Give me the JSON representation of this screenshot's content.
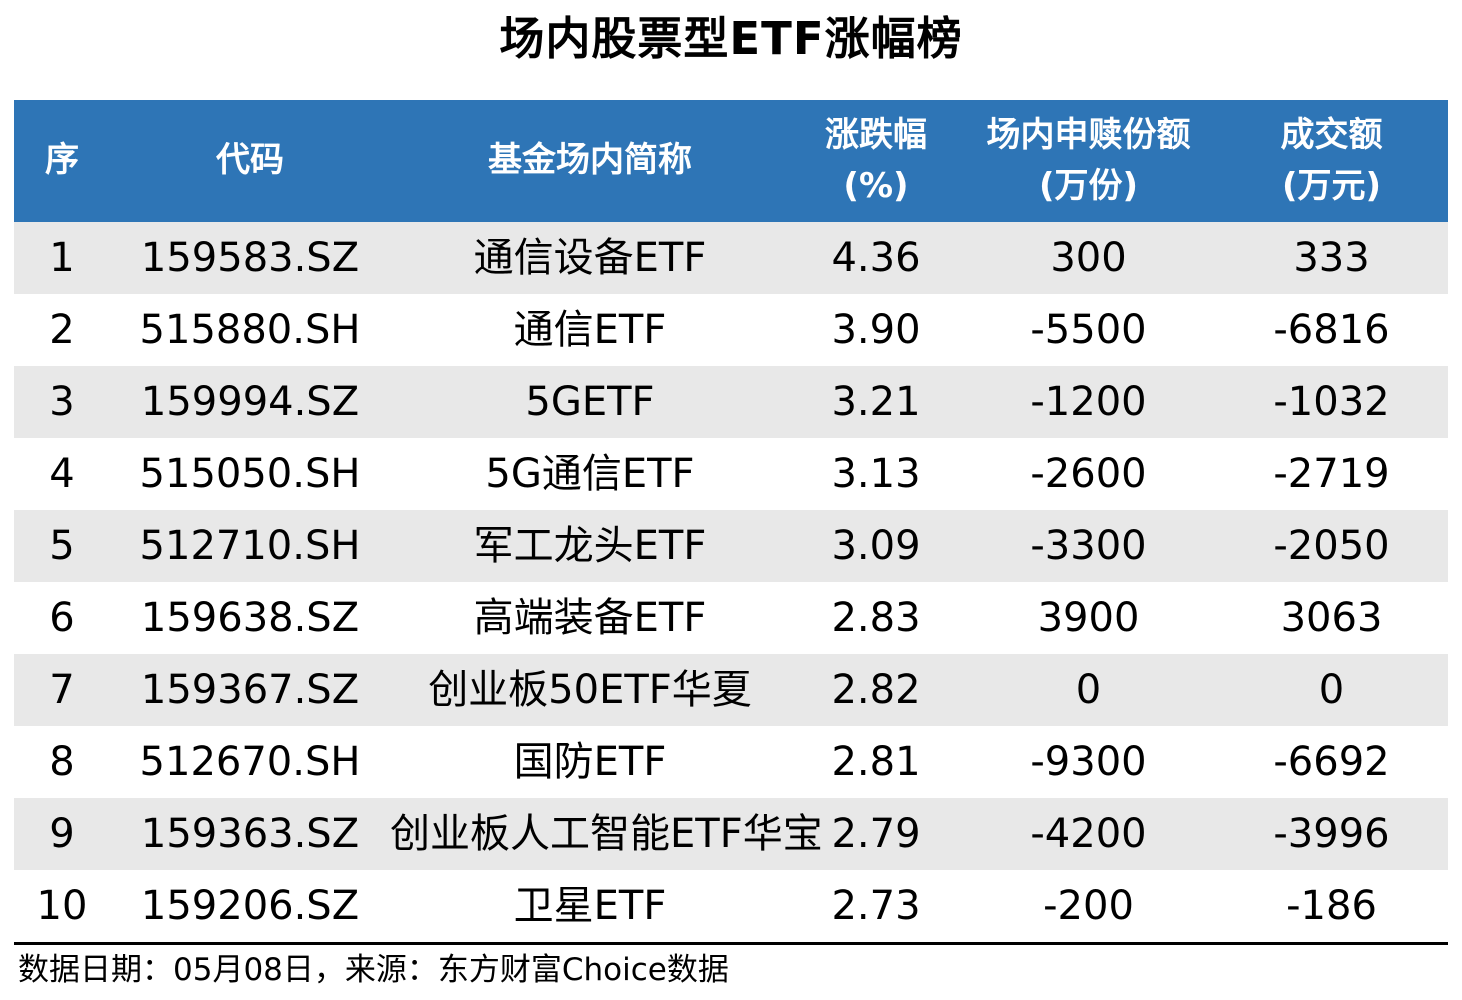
{
  "title": "场内股票型ETF涨幅榜",
  "colors": {
    "header_bg": "#2E75B6",
    "header_text": "#FFFFFF",
    "stripe": "#E8E8E8",
    "text": "#000000"
  },
  "header": {
    "columns": [
      {
        "line1": "序",
        "line2": ""
      },
      {
        "line1": "代码",
        "line2": ""
      },
      {
        "line1": "基金场内简称",
        "line2": ""
      },
      {
        "line1": "涨跌幅",
        "line2": "(%)"
      },
      {
        "line1": "场内申赎份额",
        "line2": "(万份)"
      },
      {
        "line1": "成交额",
        "line2": "(万元)"
      }
    ]
  },
  "chart_data": {
    "type": "table",
    "title": "场内股票型ETF涨幅榜",
    "columns": [
      "序",
      "代码",
      "基金场内简称",
      "涨跌幅(%)",
      "场内申赎份额(万份)",
      "成交额(万元)"
    ],
    "rows": [
      [
        "1",
        "159583.SZ",
        "通信设备ETF",
        "4.36",
        "300",
        "333"
      ],
      [
        "2",
        "515880.SH",
        "通信ETF",
        "3.90",
        "-5500",
        "-6816"
      ],
      [
        "3",
        "159994.SZ",
        "5GETF",
        "3.21",
        "-1200",
        "-1032"
      ],
      [
        "4",
        "515050.SH",
        "5G通信ETF",
        "3.13",
        "-2600",
        "-2719"
      ],
      [
        "5",
        "512710.SH",
        "军工龙头ETF",
        "3.09",
        "-3300",
        "-2050"
      ],
      [
        "6",
        "159638.SZ",
        "高端装备ETF",
        "2.83",
        "3900",
        "3063"
      ],
      [
        "7",
        "159367.SZ",
        "创业板50ETF华夏",
        "2.82",
        "0",
        "0"
      ],
      [
        "8",
        "512670.SH",
        "国防ETF",
        "2.81",
        "-9300",
        "-6692"
      ],
      [
        "9",
        "159363.SZ",
        "创业板人工智能ETF华宝",
        "2.79",
        "-4200",
        "-3996"
      ],
      [
        "10",
        "159206.SZ",
        "卫星ETF",
        "2.73",
        "-200",
        "-186"
      ]
    ]
  },
  "footer": {
    "text": "数据日期：05月08日，来源：东方财富Choice数据"
  }
}
